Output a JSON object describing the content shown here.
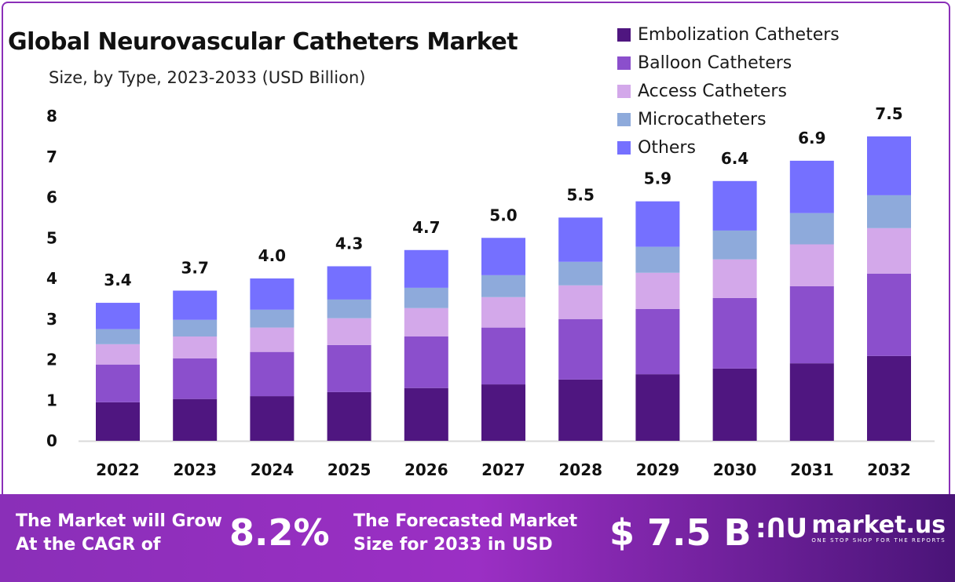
{
  "chart_data": {
    "type": "bar",
    "stacked": true,
    "title": "Global Neurovascular Catheters Market",
    "subtitle": "Size, by Type, 2023-2033 (USD Billion)",
    "xlabel": "",
    "ylabel": "",
    "ylim": [
      0,
      8
    ],
    "yticks": [
      "0",
      "1",
      "2",
      "3",
      "4",
      "5",
      "6",
      "7",
      "8"
    ],
    "grid": false,
    "legend_position": "top-right",
    "categories": [
      "2022",
      "2023",
      "2024",
      "2025",
      "2026",
      "2027",
      "2028",
      "2029",
      "2030",
      "2031",
      "2032"
    ],
    "totals": [
      "3.4",
      "3.7",
      "4.0",
      "4.3",
      "4.7",
      "5.0",
      "5.5",
      "5.9",
      "6.4",
      "6.9",
      "7.5"
    ],
    "series": [
      {
        "name": "Embolization Catheters",
        "color": "#4f1680",
        "values": [
          0.95,
          1.03,
          1.1,
          1.2,
          1.3,
          1.39,
          1.51,
          1.64,
          1.78,
          1.91,
          2.09
        ]
      },
      {
        "name": "Balloon Catheters",
        "color": "#8b4fcc",
        "values": [
          0.93,
          1.0,
          1.09,
          1.16,
          1.27,
          1.4,
          1.49,
          1.61,
          1.74,
          1.9,
          2.03
        ]
      },
      {
        "name": "Access Catheters",
        "color": "#d3a8ea",
        "values": [
          0.5,
          0.54,
          0.6,
          0.66,
          0.7,
          0.75,
          0.83,
          0.89,
          0.95,
          1.03,
          1.12
        ]
      },
      {
        "name": "Microcatheters",
        "color": "#8eaadb",
        "values": [
          0.37,
          0.41,
          0.44,
          0.46,
          0.5,
          0.54,
          0.58,
          0.64,
          0.71,
          0.77,
          0.81
        ]
      },
      {
        "name": "Others",
        "color": "#7570ff",
        "values": [
          0.65,
          0.72,
          0.77,
          0.82,
          0.93,
          0.92,
          1.09,
          1.12,
          1.22,
          1.29,
          1.45
        ]
      }
    ]
  },
  "banner": {
    "cagr_text_line1": "The Market will Grow",
    "cagr_text_line2": "At the CAGR of",
    "cagr_value": "8.2%",
    "forecast_text_line1": "The Forecasted Market",
    "forecast_text_line2": "Size for 2033 in USD",
    "forecast_value": "$ 7.5 B",
    "logo_name": "market.us",
    "logo_tagline": "ONE STOP SHOP FOR THE REPORTS"
  }
}
